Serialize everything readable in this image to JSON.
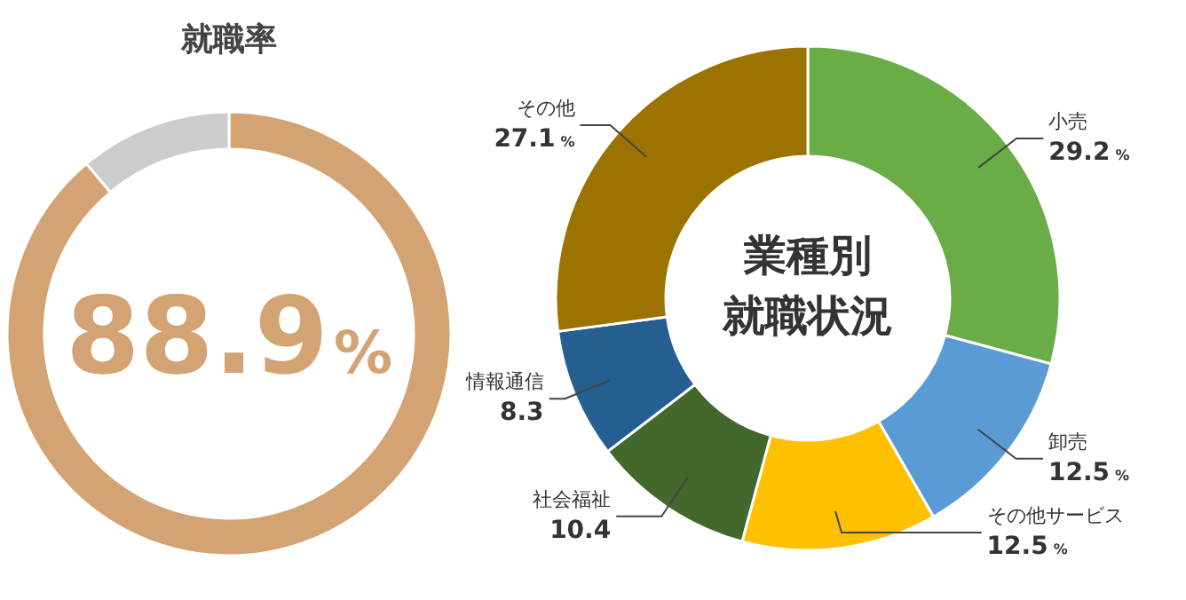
{
  "chart_data": [
    {
      "type": "donut",
      "title": "就職率",
      "categories": [
        null,
        null
      ],
      "values": [
        88.9,
        11.1
      ],
      "colors": [
        "#d4a373",
        "#cccccc"
      ],
      "value_labels": [
        "88.9%",
        null
      ]
    },
    {
      "type": "donut",
      "title": "業種別就職状況",
      "categories": [
        "小売",
        "卸売",
        "その他サービス",
        "社会福祉",
        "情報通信",
        "その他"
      ],
      "values": [
        29.2,
        12.5,
        12.5,
        10.4,
        8.3,
        27.1
      ],
      "colors": [
        "#6aac46",
        "#5b9bd5",
        "#ffc000",
        "#43682b",
        "#255e91",
        "#9c7200"
      ],
      "value_labels": [
        "29.2%",
        "12.5%",
        "12.5%",
        "10.4",
        "8.3",
        "27.1%"
      ]
    }
  ]
}
